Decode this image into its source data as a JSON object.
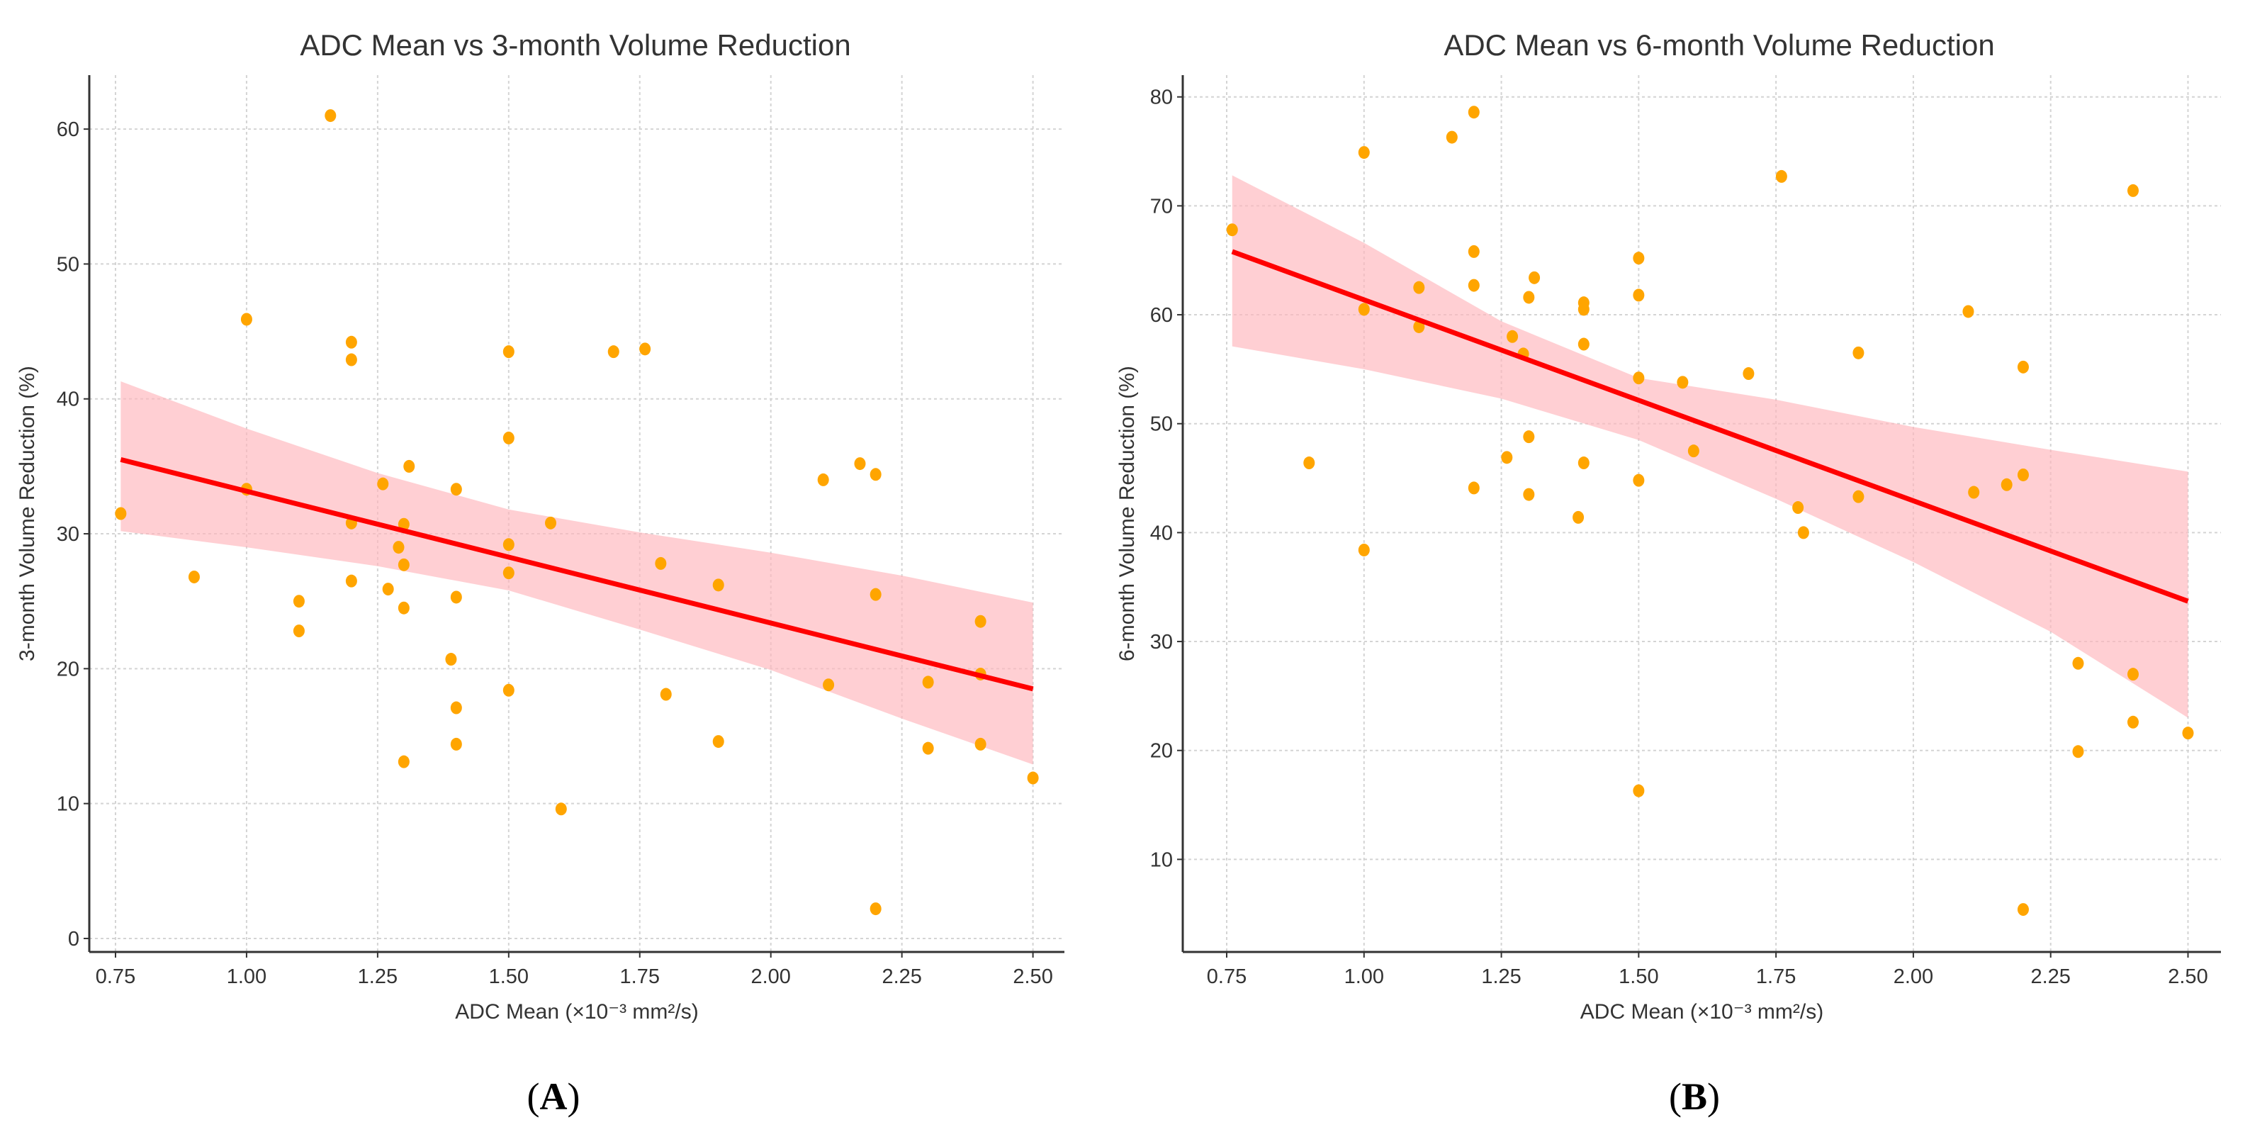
{
  "chart_data": [
    {
      "type": "scatter",
      "panel_label": "A",
      "title": "ADC Mean vs 3-month Volume Reduction",
      "xlabel": "ADC Mean (×10⁻³ mm²/s)",
      "ylabel": "3-month Volume Reduction (%)",
      "xlim": [
        0.7,
        2.56
      ],
      "ylim": [
        -1,
        64
      ],
      "xticks": [
        "0.75",
        "1.00",
        "1.25",
        "1.50",
        "1.75",
        "2.00",
        "2.25",
        "2.50"
      ],
      "yticks": [
        "0",
        "10",
        "20",
        "30",
        "40",
        "50",
        "60"
      ],
      "grid": true,
      "colors": {
        "points": "#FFA500",
        "line": "#FF0000",
        "band": "#FFB6BC"
      },
      "points": [
        [
          0.76,
          31.5
        ],
        [
          0.9,
          26.8
        ],
        [
          1.0,
          45.9
        ],
        [
          1.0,
          33.3
        ],
        [
          1.1,
          25.0
        ],
        [
          1.1,
          22.8
        ],
        [
          1.16,
          61.0
        ],
        [
          1.2,
          44.2
        ],
        [
          1.2,
          42.9
        ],
        [
          1.2,
          30.8
        ],
        [
          1.2,
          26.5
        ],
        [
          1.26,
          33.7
        ],
        [
          1.27,
          25.9
        ],
        [
          1.29,
          29.0
        ],
        [
          1.3,
          30.7
        ],
        [
          1.3,
          27.7
        ],
        [
          1.3,
          24.5
        ],
        [
          1.3,
          13.1
        ],
        [
          1.31,
          35.0
        ],
        [
          1.39,
          20.7
        ],
        [
          1.4,
          33.3
        ],
        [
          1.4,
          25.3
        ],
        [
          1.4,
          17.1
        ],
        [
          1.4,
          14.4
        ],
        [
          1.5,
          43.5
        ],
        [
          1.5,
          37.1
        ],
        [
          1.5,
          29.2
        ],
        [
          1.5,
          27.1
        ],
        [
          1.5,
          18.4
        ],
        [
          1.58,
          30.8
        ],
        [
          1.6,
          9.6
        ],
        [
          1.7,
          43.5
        ],
        [
          1.76,
          43.7
        ],
        [
          1.79,
          27.8
        ],
        [
          1.8,
          18.1
        ],
        [
          1.9,
          26.2
        ],
        [
          1.9,
          14.6
        ],
        [
          2.1,
          34.0
        ],
        [
          2.11,
          18.8
        ],
        [
          2.17,
          35.2
        ],
        [
          2.2,
          34.4
        ],
        [
          2.2,
          25.5
        ],
        [
          2.2,
          2.2
        ],
        [
          2.3,
          19.0
        ],
        [
          2.3,
          14.1
        ],
        [
          2.4,
          23.5
        ],
        [
          2.4,
          19.6
        ],
        [
          2.4,
          14.4
        ],
        [
          2.5,
          11.9
        ]
      ],
      "regression": {
        "x": [
          0.76,
          2.5
        ],
        "y": [
          35.5,
          18.5
        ]
      },
      "ci_band": {
        "x": [
          0.76,
          1.0,
          1.25,
          1.5,
          1.75,
          2.0,
          2.25,
          2.5
        ],
        "upper": [
          41.3,
          37.8,
          34.5,
          31.8,
          30.1,
          28.6,
          26.9,
          24.9
        ],
        "lower": [
          30.2,
          29.0,
          27.6,
          25.8,
          22.9,
          19.9,
          16.3,
          12.9
        ]
      }
    },
    {
      "type": "scatter",
      "panel_label": "B",
      "title": "ADC Mean vs 6-month Volume Reduction",
      "xlabel": "ADC Mean (×10⁻³ mm²/s)",
      "ylabel": "6-month Volume Reduction (%)",
      "xlim": [
        0.67,
        2.56
      ],
      "ylim": [
        1.5,
        82
      ],
      "xticks": [
        "0.75",
        "1.00",
        "1.25",
        "1.50",
        "1.75",
        "2.00",
        "2.25",
        "2.50"
      ],
      "yticks": [
        "10",
        "20",
        "30",
        "40",
        "50",
        "60",
        "70",
        "80"
      ],
      "grid": true,
      "colors": {
        "points": "#FFA500",
        "line": "#FF0000",
        "band": "#FFB6BC"
      },
      "points": [
        [
          0.76,
          67.8
        ],
        [
          0.9,
          46.4
        ],
        [
          1.0,
          74.9
        ],
        [
          1.0,
          60.5
        ],
        [
          1.0,
          38.4
        ],
        [
          1.1,
          62.5
        ],
        [
          1.1,
          58.9
        ],
        [
          1.16,
          76.3
        ],
        [
          1.2,
          78.6
        ],
        [
          1.2,
          65.8
        ],
        [
          1.2,
          62.7
        ],
        [
          1.2,
          44.1
        ],
        [
          1.26,
          46.9
        ],
        [
          1.27,
          58.0
        ],
        [
          1.29,
          56.4
        ],
        [
          1.3,
          61.6
        ],
        [
          1.3,
          48.8
        ],
        [
          1.3,
          43.5
        ],
        [
          1.31,
          63.4
        ],
        [
          1.39,
          41.4
        ],
        [
          1.4,
          61.1
        ],
        [
          1.4,
          60.5
        ],
        [
          1.4,
          57.3
        ],
        [
          1.4,
          46.4
        ],
        [
          1.5,
          65.2
        ],
        [
          1.5,
          61.8
        ],
        [
          1.5,
          54.2
        ],
        [
          1.5,
          44.8
        ],
        [
          1.5,
          16.3
        ],
        [
          1.58,
          53.8
        ],
        [
          1.6,
          47.5
        ],
        [
          1.7,
          54.6
        ],
        [
          1.76,
          72.7
        ],
        [
          1.79,
          42.3
        ],
        [
          1.8,
          40.0
        ],
        [
          1.9,
          56.5
        ],
        [
          1.9,
          43.3
        ],
        [
          2.1,
          60.3
        ],
        [
          2.11,
          43.7
        ],
        [
          2.17,
          44.4
        ],
        [
          2.2,
          55.2
        ],
        [
          2.2,
          45.3
        ],
        [
          2.2,
          5.4
        ],
        [
          2.3,
          28.0
        ],
        [
          2.3,
          19.9
        ],
        [
          2.4,
          71.4
        ],
        [
          2.4,
          27.0
        ],
        [
          2.4,
          22.6
        ],
        [
          2.5,
          21.6
        ]
      ],
      "regression": {
        "x": [
          0.76,
          2.5
        ],
        "y": [
          65.8,
          33.7
        ]
      },
      "ci_band": {
        "x": [
          0.76,
          1.0,
          1.25,
          1.5,
          1.75,
          2.0,
          2.25,
          2.5
        ],
        "upper": [
          72.8,
          66.6,
          59.4,
          54.2,
          52.2,
          49.7,
          47.6,
          45.6
        ],
        "lower": [
          57.1,
          55.0,
          52.3,
          48.5,
          43.1,
          37.3,
          30.9,
          23.0
        ]
      }
    }
  ]
}
